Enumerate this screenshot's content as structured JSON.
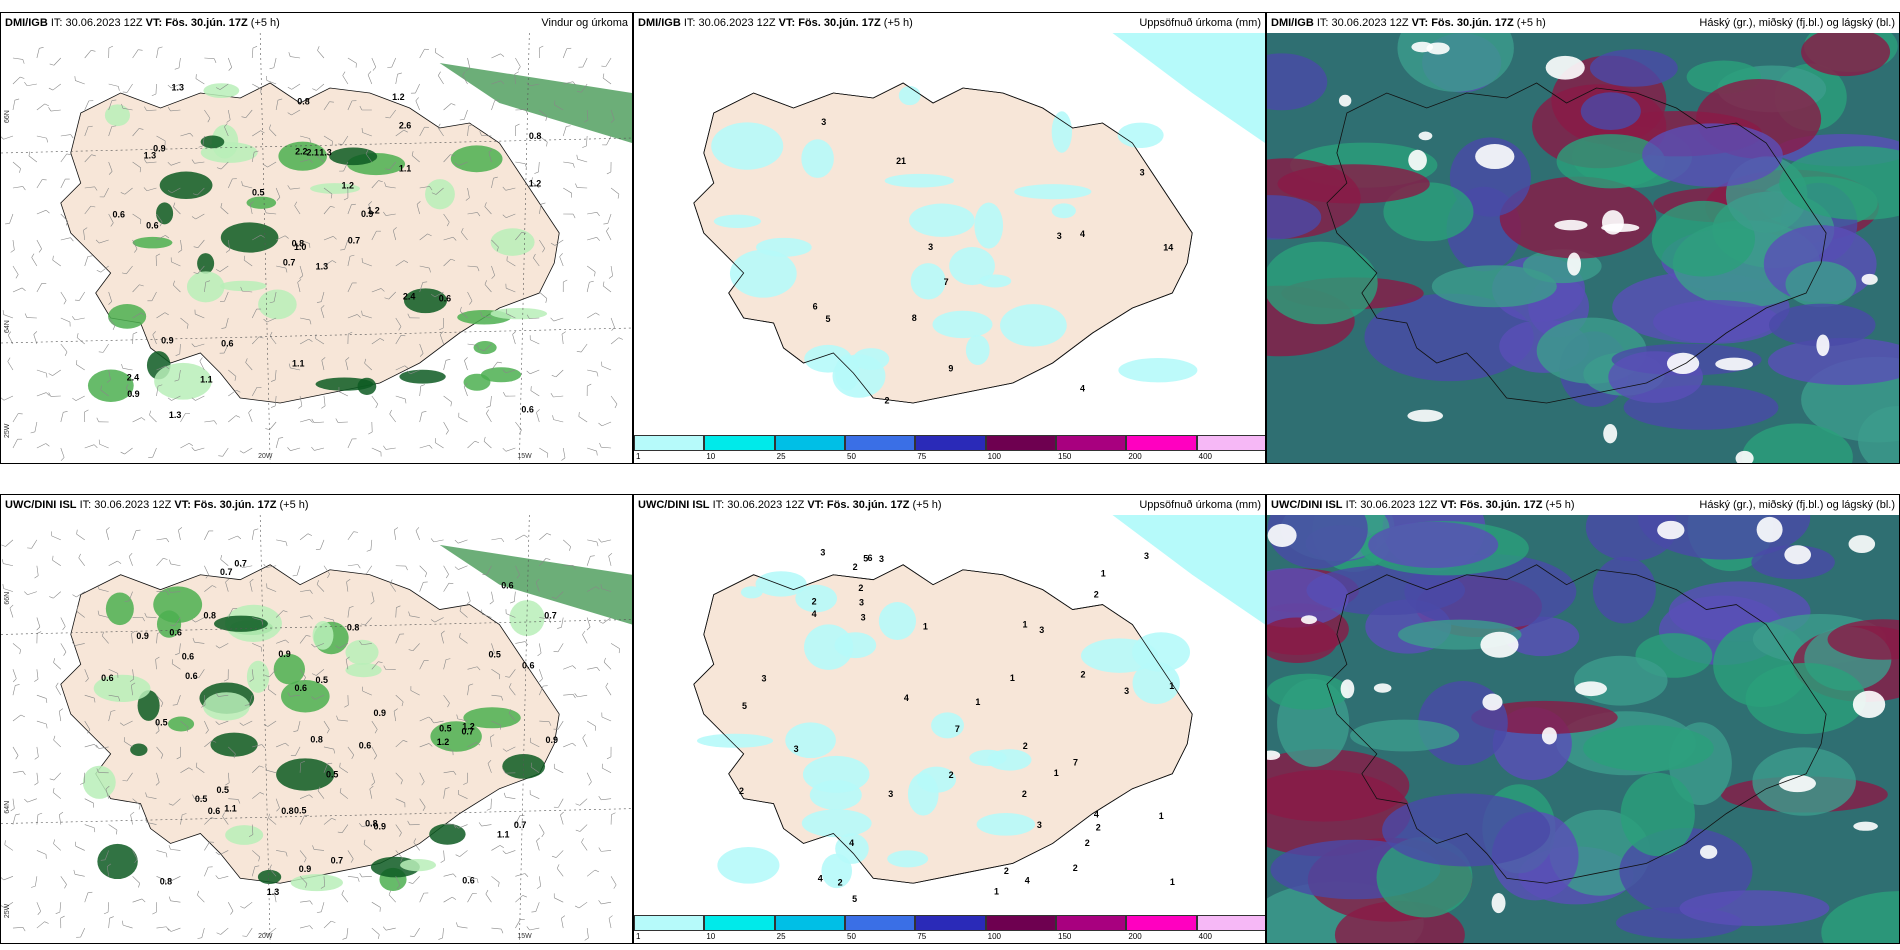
{
  "panels": [
    {
      "id": "p1",
      "model": "DMI/IGB",
      "it": "IT: 30.06.2023 12Z",
      "vt_label": "VT:",
      "vt": "Fös. 30.jún. 17Z",
      "lead": "(+5 h)",
      "title": "Vindur og úrkoma",
      "kind": "wind",
      "values": [
        "1.3",
        "1.3",
        "1.0",
        "2.4",
        "0.9",
        "0.6",
        "1.2",
        "1.3",
        "2.6",
        "0.7",
        "1.3",
        "0.6",
        "0.6",
        "0.8",
        "0.7",
        "1.1",
        "1.3",
        "2.2",
        "1.2",
        "0.9",
        "0.5",
        "0.9",
        "1.1",
        "2.1",
        "1.2",
        "0.6",
        "0.9",
        "0.8",
        "0.6",
        "2.4",
        "1.2",
        "0.8",
        "1.1"
      ],
      "axes": {
        "lat1": "66N",
        "lat2": "64N",
        "lat3": "25W",
        "lon1": "20W",
        "lon2": "15W"
      }
    },
    {
      "id": "p2",
      "model": "DMI/IGB",
      "it": "IT: 30.06.2023 12Z",
      "vt_label": "VT:",
      "vt": "Fös. 30.jún. 17Z",
      "lead": "(+5 h)",
      "title": "Uppsöfnuð úrkoma (mm)",
      "kind": "accum",
      "values": [
        "3",
        "4",
        "4",
        "7",
        "9",
        "21",
        "3",
        "6",
        "8",
        "14",
        "5",
        "3",
        "2",
        "3"
      ]
    },
    {
      "id": "p3",
      "model": "DMI/IGB",
      "it": "IT: 30.06.2023 12Z",
      "vt_label": "VT:",
      "vt": "Fös. 30.jún. 17Z",
      "lead": "(+5 h)",
      "title": "Háský (gr.), miðský (fj.bl.) og lágský (bl.)",
      "kind": "cloud"
    },
    {
      "id": "p4",
      "model": "UWC/DINI ISL",
      "it": "IT: 30.06.2023 12Z",
      "vt_label": "VT:",
      "vt": "Fös. 30.jún. 17Z",
      "lead": "(+5 h)",
      "title": "",
      "kind": "wind",
      "values": [
        "0.6",
        "0.9",
        "0.6",
        "0.7",
        "1.1",
        "0.8",
        "0.6",
        "0.6",
        "1.1",
        "1.2",
        "0.7",
        "0.5",
        "0.6",
        "1.2",
        "0.5",
        "0.7",
        "0.9",
        "0.8",
        "0.5",
        "0.5",
        "0.9",
        "0.6",
        "0.8",
        "1.3",
        "0.6",
        "0.8",
        "0.7",
        "0.9",
        "0.5",
        "0.5",
        "0.9",
        "0.8",
        "0.6",
        "0.5",
        "0.7",
        "0.8",
        "0.7",
        "0.9",
        "0.6",
        "0.6",
        "0.5"
      ],
      "axes": {
        "lat1": "66N",
        "lat2": "64N",
        "lat3": "25W",
        "lon1": "20W",
        "lon2": "15W"
      }
    },
    {
      "id": "p5",
      "model": "UWC/DINI ISL",
      "it": "IT: 30.06.2023 12Z",
      "vt_label": "VT:",
      "vt": "Fös. 30.jún. 17Z",
      "lead": "(+5 h)",
      "title": "Uppsöfnuð úrkoma (mm)",
      "kind": "accum",
      "values": [
        "1",
        "2",
        "2",
        "3",
        "4",
        "2",
        "2",
        "5",
        "1",
        "3",
        "3",
        "2",
        "5",
        "7",
        "3",
        "4",
        "1",
        "2",
        "2",
        "3",
        "4",
        "6",
        "2",
        "3",
        "1",
        "2",
        "4",
        "3",
        "5",
        "2",
        "7",
        "1",
        "3",
        "1",
        "4",
        "1",
        "2",
        "2",
        "3",
        "2",
        "1",
        "4",
        "3",
        "1",
        "1",
        "2",
        "3"
      ]
    },
    {
      "id": "p6",
      "model": "UWC/DINI ISL",
      "it": "IT: 30.06.2023 12Z",
      "vt_label": "VT:",
      "vt": "Fös. 30.jún. 17Z",
      "lead": "(+5 h)",
      "title": "Háský (gr.), miðský (fj.bl.) og lágský (bl.)",
      "kind": "cloud"
    }
  ],
  "colorbar": {
    "colors": [
      "#b6fafa",
      "#00eaea",
      "#00bfe6",
      "#3a6fe6",
      "#2a2ab8",
      "#6e0050",
      "#a8007f",
      "#ff00c0",
      "#f6b8f6"
    ],
    "ticks": [
      "1",
      "10",
      "25",
      "50",
      "75",
      "100",
      "150",
      "200",
      "400"
    ]
  }
}
